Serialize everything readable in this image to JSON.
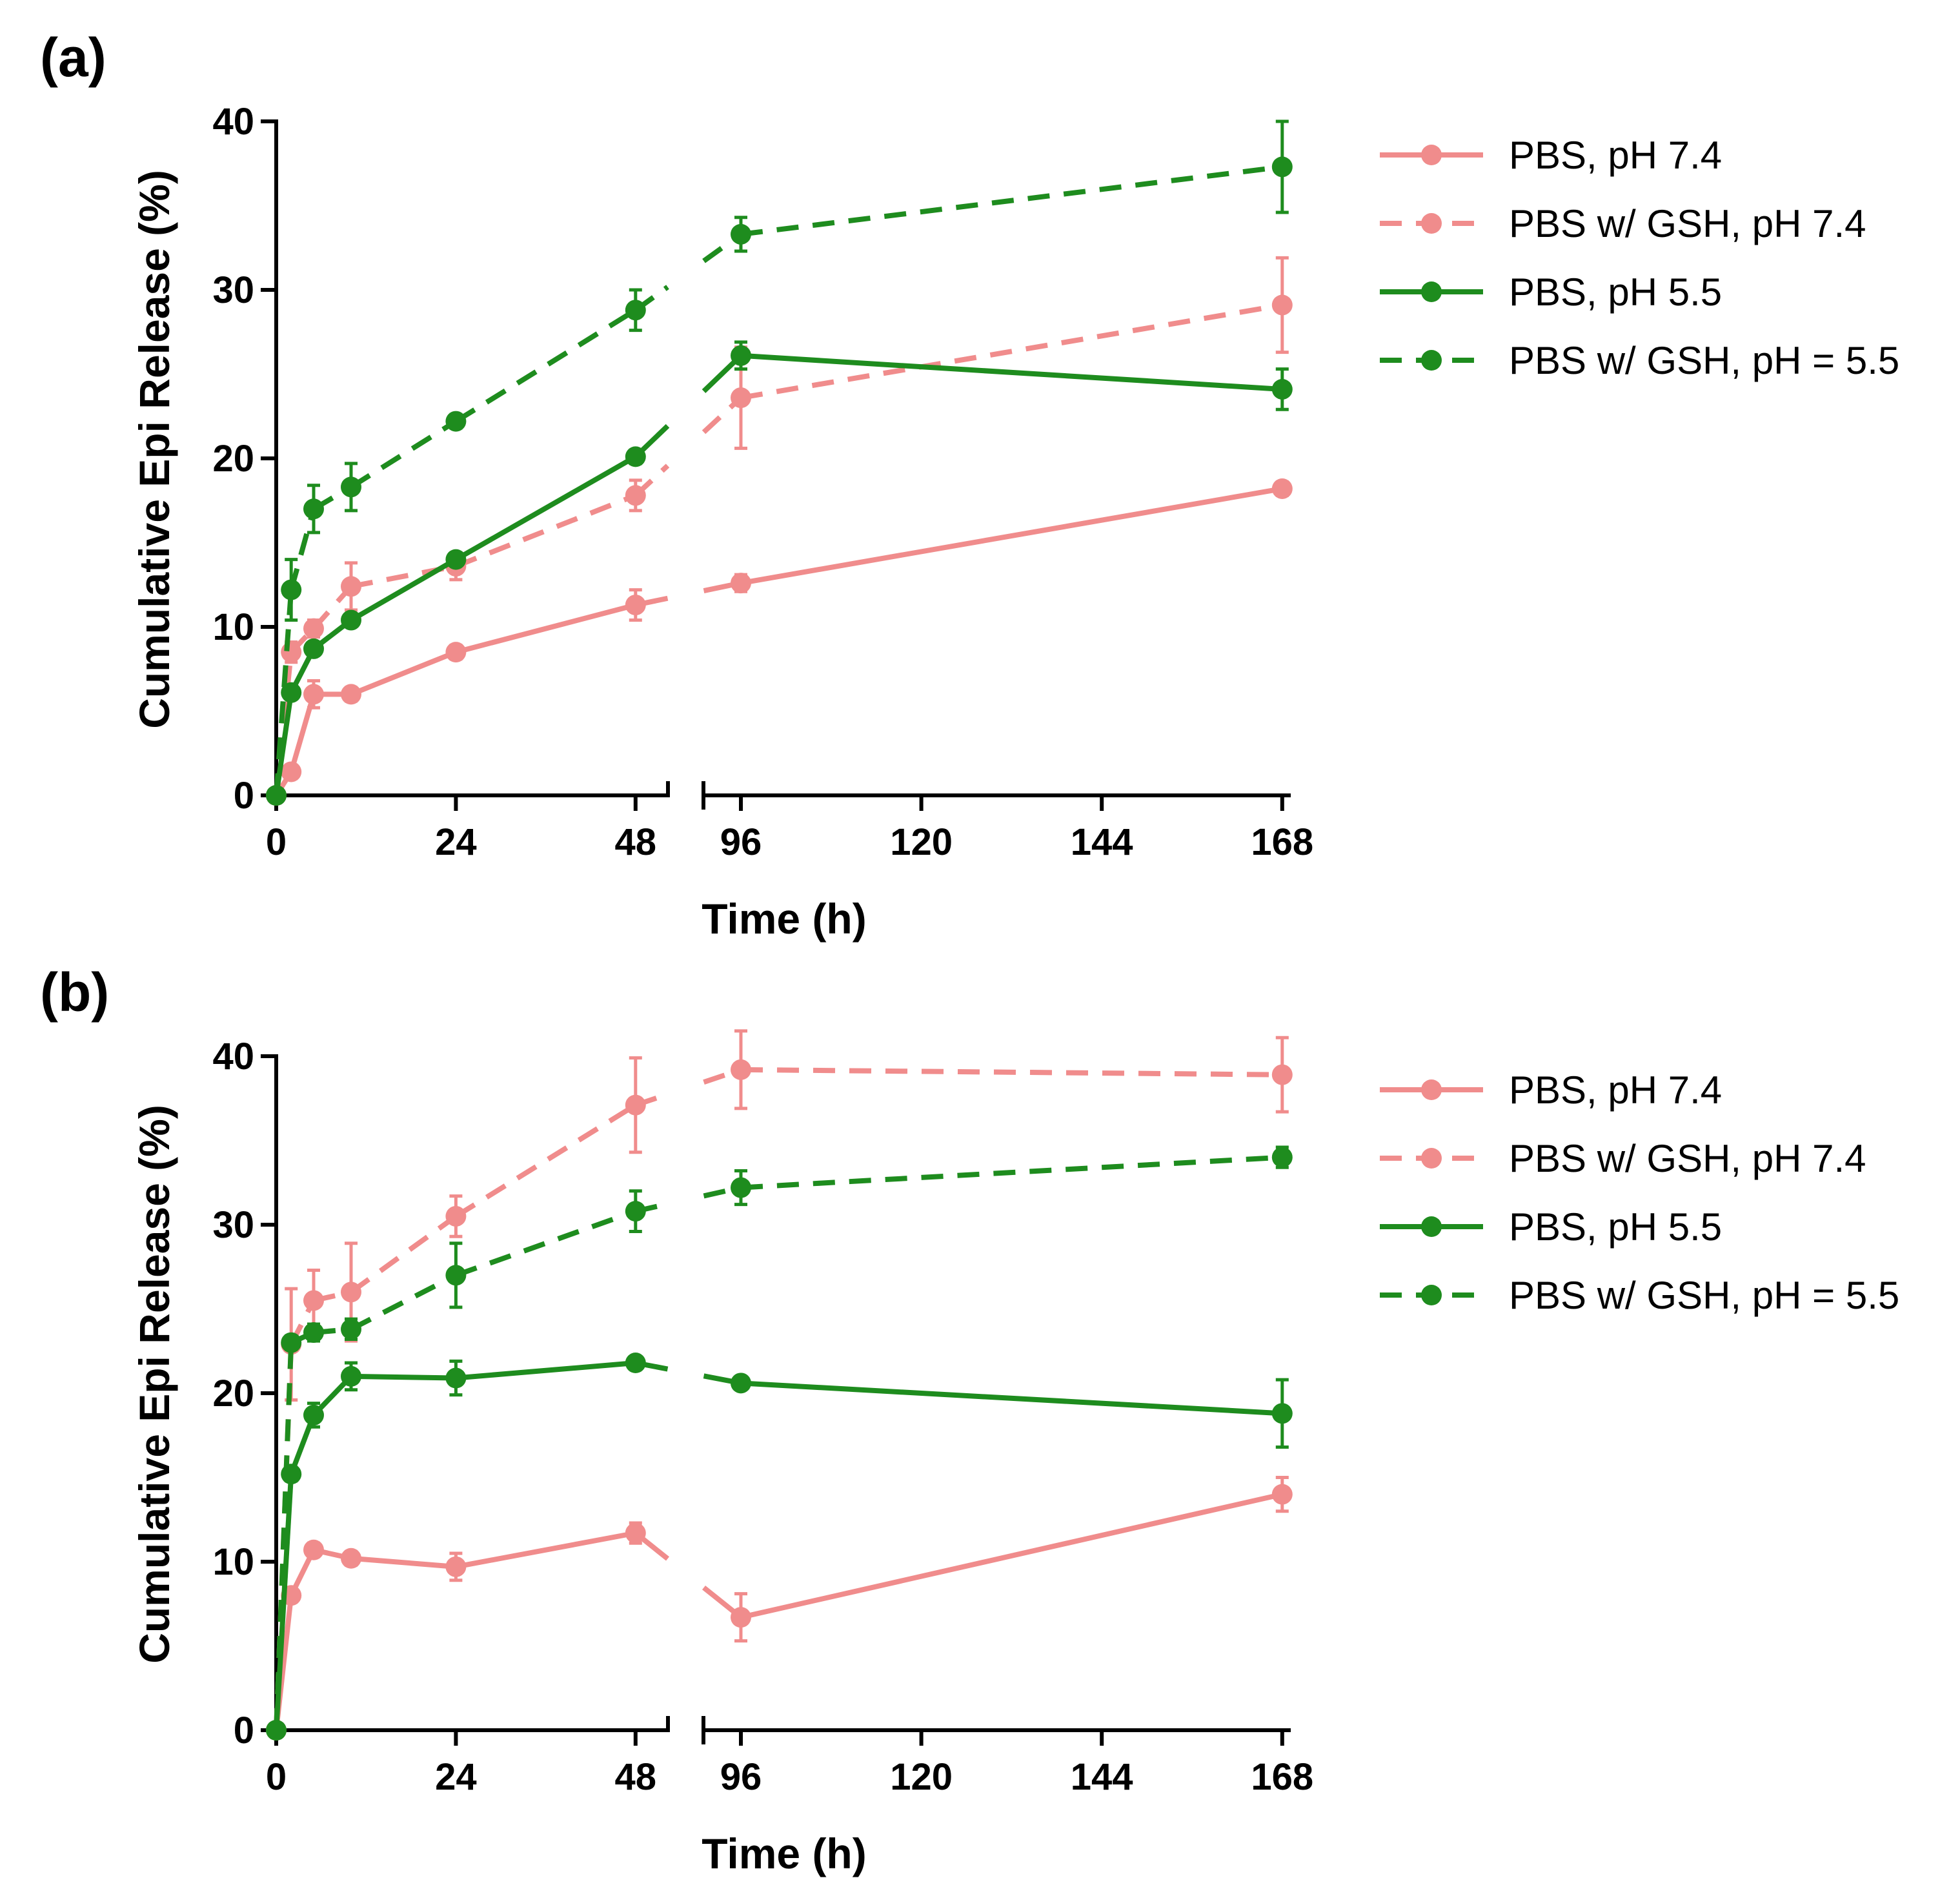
{
  "colors": {
    "pink": "#f08c8c",
    "green": "#1e8c1e",
    "axis": "#000000"
  },
  "chart_data": [
    {
      "type": "line",
      "panel_label": "(a)",
      "xlabel": "Time (h)",
      "ylabel": "Cumulative Epi Release (%)",
      "ylim": [
        0,
        40
      ],
      "yticks": [
        "0",
        "10",
        "20",
        "30",
        "40"
      ],
      "xticks": [
        "0",
        "24",
        "48",
        "96",
        "120",
        "144",
        "168"
      ],
      "x_axis_break": [
        48,
        96
      ],
      "legend_position": "right",
      "series": [
        {
          "name": "PBS, pH 7.4",
          "color": "#f08c8c",
          "dashed": false,
          "x": [
            0,
            2,
            5,
            10,
            24,
            48,
            96,
            168
          ],
          "y": [
            0,
            1.4,
            6.0,
            6.0,
            8.5,
            11.3,
            12.6,
            18.2
          ],
          "err": [
            0,
            0.4,
            0.8,
            0.4,
            0.4,
            0.9,
            0.5,
            0.4
          ]
        },
        {
          "name": "PBS w/ GSH, pH 7.4",
          "color": "#f08c8c",
          "dashed": true,
          "x": [
            0,
            2,
            5,
            10,
            24,
            48,
            96,
            168
          ],
          "y": [
            0,
            8.5,
            9.9,
            12.4,
            13.6,
            17.8,
            23.6,
            29.1
          ],
          "err": [
            0,
            0.6,
            0.5,
            1.4,
            0.8,
            0.9,
            3.0,
            2.8
          ]
        },
        {
          "name": "PBS, pH 5.5",
          "color": "#1e8c1e",
          "dashed": false,
          "x": [
            0,
            2,
            5,
            10,
            24,
            48,
            96,
            168
          ],
          "y": [
            0,
            6.1,
            8.7,
            10.4,
            14.0,
            20.1,
            26.1,
            24.1
          ],
          "err": [
            0,
            0.3,
            0.3,
            0.3,
            0.3,
            0.4,
            0.8,
            1.2
          ]
        },
        {
          "name": "PBS w/ GSH, pH = 5.5",
          "color": "#1e8c1e",
          "dashed": true,
          "x": [
            0,
            2,
            5,
            10,
            24,
            48,
            96,
            168
          ],
          "y": [
            0,
            12.2,
            17.0,
            18.3,
            22.2,
            28.8,
            33.3,
            37.3
          ],
          "err": [
            0,
            1.8,
            1.4,
            1.4,
            0.4,
            1.2,
            1.0,
            2.7
          ]
        }
      ]
    },
    {
      "type": "line",
      "panel_label": "(b)",
      "xlabel": "Time (h)",
      "ylabel": "Cumulative Epi Release (%)",
      "ylim": [
        0,
        40
      ],
      "yticks": [
        "0",
        "10",
        "20",
        "30",
        "40"
      ],
      "xticks": [
        "0",
        "24",
        "48",
        "96",
        "120",
        "144",
        "168"
      ],
      "x_axis_break": [
        48,
        96
      ],
      "legend_position": "right",
      "series": [
        {
          "name": "PBS, pH 7.4",
          "color": "#f08c8c",
          "dashed": false,
          "x": [
            0,
            2,
            5,
            10,
            24,
            48,
            96,
            168
          ],
          "y": [
            0,
            8.0,
            10.7,
            10.2,
            9.7,
            11.7,
            6.7,
            14.0
          ],
          "err": [
            0,
            0.4,
            0.4,
            0.4,
            0.8,
            0.6,
            1.4,
            1.0
          ]
        },
        {
          "name": "PBS w/ GSH, pH 7.4",
          "color": "#f08c8c",
          "dashed": true,
          "x": [
            0,
            2,
            5,
            10,
            24,
            48,
            96,
            168
          ],
          "y": [
            0,
            22.9,
            25.5,
            26.0,
            30.5,
            37.1,
            39.2,
            38.9
          ],
          "err": [
            0,
            3.3,
            1.8,
            2.9,
            1.2,
            2.8,
            2.3,
            2.2
          ]
        },
        {
          "name": "PBS, pH 5.5",
          "color": "#1e8c1e",
          "dashed": false,
          "x": [
            0,
            2,
            5,
            10,
            24,
            48,
            96,
            168
          ],
          "y": [
            0,
            15.2,
            18.7,
            21.0,
            20.9,
            21.8,
            20.6,
            18.8
          ],
          "err": [
            0,
            0.4,
            0.7,
            0.8,
            1.0,
            0.3,
            0.3,
            2.0
          ]
        },
        {
          "name": "PBS w/ GSH, pH = 5.5",
          "color": "#1e8c1e",
          "dashed": true,
          "x": [
            0,
            2,
            5,
            10,
            24,
            48,
            96,
            168
          ],
          "y": [
            0,
            23.0,
            23.6,
            23.8,
            27.0,
            30.8,
            32.2,
            34.0
          ],
          "err": [
            0,
            0.4,
            0.5,
            0.6,
            1.9,
            1.2,
            1.0,
            0.6
          ]
        }
      ]
    }
  ]
}
